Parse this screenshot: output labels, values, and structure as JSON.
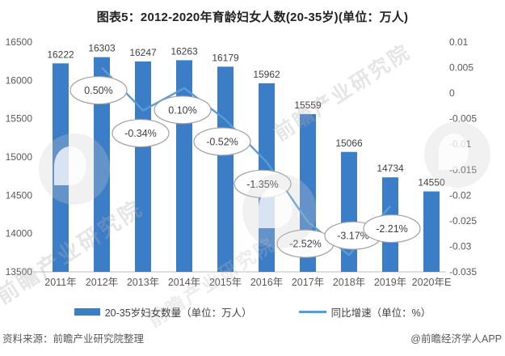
{
  "title": "图表5：2012-2020年育龄妇女人数(20-35岁)(单位：万人)",
  "source_left": "资料来源：前瞻产业研究院整理",
  "source_right": "@前瞻经济学人APP",
  "watermark": {
    "text": "前瞻产业研究院"
  },
  "colors": {
    "bar": "#3C7DC8",
    "line": "#5B9BD5",
    "axis_text": "#595959",
    "value_text": "#3F3F3F",
    "baseline": "#C9C9C9",
    "callout_border": "#A0A0A0",
    "callout_fill": "#FFFFFF"
  },
  "chart_data": {
    "type": "bar+line combo",
    "title": "图表5：2012-2020年育龄妇女人数(20-35岁)(单位：万人)",
    "categories": [
      "2011年",
      "2012年",
      "2013年",
      "2014年",
      "2015年",
      "2016年",
      "2017年",
      "2018年",
      "2019年",
      "2020年E"
    ],
    "series": [
      {
        "name": "20-35岁妇女数量（单位：万人）",
        "type": "bar",
        "axis": "left",
        "values": [
          16222,
          16303,
          16247,
          16263,
          16179,
          15962,
          15559,
          15066,
          14734,
          14550
        ],
        "value_labels": [
          "16222",
          "16303",
          "16247",
          "16263",
          "16179",
          "15962",
          "15559",
          "15066",
          "14734",
          "14550"
        ]
      },
      {
        "name": "同比增速（单位：%）",
        "type": "line",
        "axis": "right",
        "values": [
          null,
          0.005,
          -0.0034,
          0.001,
          -0.0052,
          -0.0135,
          -0.0252,
          -0.0317,
          -0.0221,
          null
        ],
        "point_labels": [
          null,
          "0.50%",
          "-0.34%",
          "0.10%",
          "-0.52%",
          "-1.35%",
          "-2.52%",
          "-3.17%",
          "-2.21%",
          null
        ],
        "label_dx": [
          null,
          -4,
          -3,
          -2,
          -4,
          -5,
          -3,
          5,
          2,
          null
        ],
        "label_dy": [
          null,
          28,
          28,
          27,
          27,
          27,
          27,
          -24,
          28,
          null
        ]
      }
    ],
    "left_axis": {
      "min": 13500,
      "max": 16500,
      "step": 500,
      "ticks": [
        "16500",
        "16000",
        "15500",
        "15000",
        "14500",
        "14000",
        "13500"
      ]
    },
    "right_axis": {
      "min": -0.035,
      "max": 0.01,
      "step": 0.005,
      "ticks": [
        "0.01",
        "0.005",
        "0",
        "-0.005",
        "-0.01",
        "-0.015",
        "-0.02",
        "-0.025",
        "-0.03",
        "-0.035"
      ]
    },
    "grid": false,
    "legend_position": "bottom"
  }
}
